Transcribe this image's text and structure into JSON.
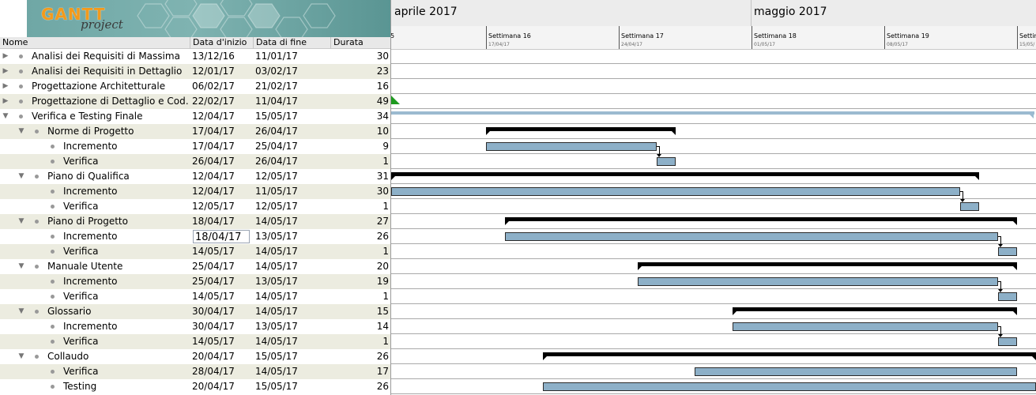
{
  "logo": {
    "word": "GANTT",
    "sub": "project"
  },
  "columns": {
    "name": "Nome",
    "start": "Data d'inizio",
    "end": "Data di fine",
    "duration": "Durata"
  },
  "tasks": [
    {
      "name": "Analisi dei Requisiti di Massima",
      "start": "13/12/16",
      "end": "11/01/17",
      "duration": "30"
    },
    {
      "name": "Analisi dei Requisiti in Dettaglio",
      "start": "12/01/17",
      "end": "03/02/17",
      "duration": "23"
    },
    {
      "name": "Progettazione Architetturale",
      "start": "06/02/17",
      "end": "21/02/17",
      "duration": "16"
    },
    {
      "name": "Progettazione di Dettaglio e Cod…",
      "start": "22/02/17",
      "end": "11/04/17",
      "duration": "49"
    },
    {
      "name": "Verifica e Testing Finale",
      "start": "12/04/17",
      "end": "15/05/17",
      "duration": "34"
    },
    {
      "name": "Norme di Progetto",
      "start": "17/04/17",
      "end": "26/04/17",
      "duration": "10"
    },
    {
      "name": "Incremento",
      "start": "17/04/17",
      "end": "25/04/17",
      "duration": "9"
    },
    {
      "name": "Verifica",
      "start": "26/04/17",
      "end": "26/04/17",
      "duration": "1"
    },
    {
      "name": "Piano di Qualifica",
      "start": "12/04/17",
      "end": "12/05/17",
      "duration": "31"
    },
    {
      "name": "Incremento",
      "start": "12/04/17",
      "end": "11/05/17",
      "duration": "30"
    },
    {
      "name": "Verifica",
      "start": "12/05/17",
      "end": "12/05/17",
      "duration": "1"
    },
    {
      "name": "Piano di Progetto",
      "start": "18/04/17",
      "end": "14/05/17",
      "duration": "27"
    },
    {
      "name": "Incremento",
      "start": "18/04/17",
      "end": "13/05/17",
      "duration": "26"
    },
    {
      "name": "Verifica",
      "start": "14/05/17",
      "end": "14/05/17",
      "duration": "1"
    },
    {
      "name": "Manuale Utente",
      "start": "25/04/17",
      "end": "14/05/17",
      "duration": "20"
    },
    {
      "name": "Incremento",
      "start": "25/04/17",
      "end": "13/05/17",
      "duration": "19"
    },
    {
      "name": "Verifica",
      "start": "14/05/17",
      "end": "14/05/17",
      "duration": "1"
    },
    {
      "name": "Glossario",
      "start": "30/04/17",
      "end": "14/05/17",
      "duration": "15"
    },
    {
      "name": "Incremento",
      "start": "30/04/17",
      "end": "13/05/17",
      "duration": "14"
    },
    {
      "name": "Verifica",
      "start": "14/05/17",
      "end": "14/05/17",
      "duration": "1"
    },
    {
      "name": "Collaudo",
      "start": "20/04/17",
      "end": "15/05/17",
      "duration": "26"
    },
    {
      "name": "Verifica",
      "start": "28/04/17",
      "end": "14/05/17",
      "duration": "17"
    },
    {
      "name": "Testing",
      "start": "20/04/17",
      "end": "15/05/17",
      "duration": "26"
    }
  ],
  "timeline": {
    "months": [
      "aprile 2017",
      "maggio 2017"
    ],
    "weeks": [
      {
        "label": "5",
        "date": ""
      },
      {
        "label": "Settimana 16",
        "date": "17/04/17"
      },
      {
        "label": "Settimana 17",
        "date": "24/04/17"
      },
      {
        "label": "Settimana 18",
        "date": "01/05/17"
      },
      {
        "label": "Settimana 19",
        "date": "08/05/17"
      },
      {
        "label": "Settimana",
        "date": "15/05/"
      }
    ]
  },
  "colors": {
    "bar": "#8db0c8",
    "summary": "#000000",
    "row_alt": "#ecece0",
    "logo_orange": "#f39a1c"
  }
}
